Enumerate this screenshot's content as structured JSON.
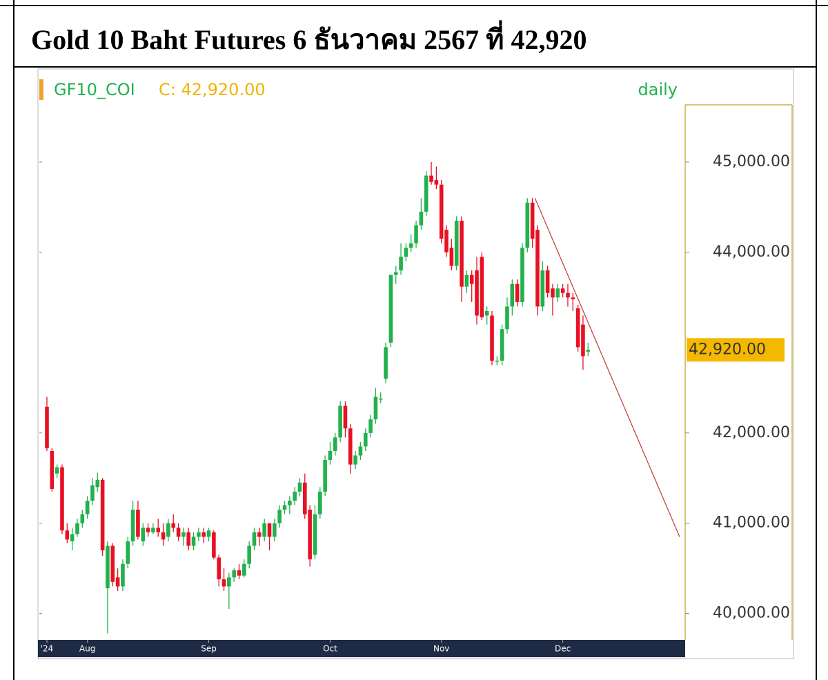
{
  "chart_data": {
    "type": "candlestick",
    "title": "Gold 10 Baht Futures 6 ธันวาคม 2567 ที่ 42,920",
    "symbol": "GF10_COI",
    "close_text": "C: 42,920.00",
    "interval": "daily",
    "up_color": "#22b14c",
    "down_color": "#e81123",
    "open": [
      42290,
      41800,
      41550,
      41620,
      40920,
      40800,
      40880,
      41000,
      41100,
      41250,
      41400,
      41480,
      40280,
      40750,
      40400,
      40300,
      40550,
      40800,
      41150,
      40800,
      40950,
      40900,
      40950,
      40900,
      40850,
      41000,
      40950,
      40850,
      40900,
      40750,
      40850,
      40900,
      40850,
      40900,
      40620,
      40380,
      40300,
      40400,
      40480,
      40420,
      40550,
      40750,
      40900,
      40850,
      41000,
      40850,
      41000,
      41150,
      41200,
      41250,
      41350,
      41450,
      41150,
      40650,
      41100,
      41350,
      41700,
      41800,
      41950,
      42300,
      42050,
      41650,
      41750,
      41850,
      42000,
      42150,
      42380,
      42600,
      43000,
      43750,
      43800,
      43950,
      44050,
      44100,
      44300,
      44450,
      44850,
      44800,
      44750,
      44250,
      44050,
      43850,
      44350,
      43620,
      43750,
      43800,
      43950,
      43300,
      43300,
      42800,
      42800,
      43150,
      43400,
      43650,
      43450,
      44050,
      44550,
      44250,
      43400,
      43800,
      43600,
      43500,
      43600,
      43550,
      43500,
      43380,
      43200,
      42900
    ],
    "high": [
      42400,
      41830,
      41650,
      41650,
      41000,
      40950,
      41050,
      41150,
      41300,
      41500,
      41560,
      41500,
      40800,
      40780,
      40500,
      40600,
      40850,
      41250,
      41250,
      41000,
      41000,
      41000,
      41050,
      41000,
      41050,
      41100,
      41000,
      40950,
      40950,
      40900,
      40950,
      40950,
      40950,
      40920,
      40650,
      40500,
      40450,
      40500,
      40550,
      40600,
      40800,
      40950,
      40950,
      41050,
      41000,
      41050,
      41200,
      41250,
      41300,
      41400,
      41500,
      41550,
      41200,
      41200,
      41400,
      41750,
      41900,
      42000,
      42350,
      42350,
      42100,
      41800,
      41900,
      42050,
      42200,
      42500,
      42450,
      43000,
      43750,
      43850,
      44100,
      44100,
      44200,
      44350,
      44600,
      44900,
      45000,
      44950,
      44800,
      44300,
      44150,
      44400,
      44400,
      43800,
      43800,
      43950,
      44000,
      43400,
      43350,
      42850,
      43200,
      43500,
      43700,
      43700,
      44100,
      44600,
      44600,
      44300,
      43900,
      43850,
      43650,
      43650,
      43650,
      43650,
      43550,
      43420,
      43300,
      43000
    ],
    "low": [
      41800,
      41350,
      41500,
      40880,
      40780,
      40700,
      40850,
      40950,
      41050,
      41200,
      41350,
      40640,
      39780,
      40300,
      40250,
      40250,
      40500,
      40750,
      40820,
      40750,
      40850,
      40880,
      40850,
      40750,
      40800,
      40900,
      40800,
      40750,
      40700,
      40700,
      40800,
      40780,
      40800,
      40600,
      40300,
      40250,
      40050,
      40350,
      40380,
      40400,
      40500,
      40700,
      40750,
      40800,
      40700,
      40800,
      40950,
      41100,
      41100,
      41200,
      41300,
      41050,
      40520,
      40600,
      41050,
      41300,
      41650,
      41750,
      41900,
      41950,
      41550,
      41600,
      41700,
      41800,
      41950,
      42100,
      42330,
      42550,
      42950,
      43650,
      43750,
      43900,
      44000,
      44050,
      44250,
      44400,
      44750,
      44700,
      44100,
      43950,
      43800,
      43800,
      43450,
      43550,
      43450,
      43200,
      43250,
      43200,
      42750,
      42750,
      42750,
      43100,
      43300,
      43400,
      43400,
      44000,
      44050,
      43300,
      43350,
      43500,
      43300,
      43450,
      43500,
      43400,
      43350,
      42900,
      42700,
      42850
    ],
    "close": [
      41830,
      41380,
      41620,
      40920,
      40820,
      40880,
      41000,
      41100,
      41250,
      41420,
      41480,
      40700,
      40750,
      40350,
      40300,
      40550,
      40800,
      41150,
      40850,
      40950,
      40900,
      40950,
      40900,
      40820,
      41000,
      40950,
      40850,
      40900,
      40750,
      40850,
      40900,
      40850,
      40920,
      40620,
      40380,
      40300,
      40400,
      40480,
      40420,
      40550,
      40750,
      40900,
      40850,
      41000,
      40850,
      41000,
      41150,
      41200,
      41250,
      41350,
      41450,
      41100,
      40600,
      41100,
      41350,
      41700,
      41800,
      41950,
      42300,
      42050,
      41650,
      41750,
      41850,
      42000,
      42150,
      42400,
      42380,
      42950,
      43750,
      43780,
      43950,
      44050,
      44100,
      44300,
      44450,
      44850,
      44780,
      44750,
      44150,
      44000,
      43850,
      44350,
      43620,
      43750,
      43650,
      43300,
      43280,
      43350,
      42800,
      42800,
      43150,
      43400,
      43650,
      43450,
      44050,
      44550,
      44150,
      43400,
      43800,
      43550,
      43500,
      43600,
      43550,
      43500,
      43480,
      42950,
      42850,
      42920
    ],
    "trendline": {
      "x": [
        96.5,
        125.1
      ],
      "values": [
        44600,
        40850
      ],
      "color": "#c0392b"
    },
    "last_price": {
      "value": 42920,
      "label": "42,920.00"
    },
    "ylim": [
      39730,
      46000
    ],
    "yticks": [
      {
        "value": 40000,
        "label": "40,000.00"
      },
      {
        "value": 41000,
        "label": "41,000.00"
      },
      {
        "value": 42000,
        "label": "42,000.00"
      },
      {
        "value": 44000,
        "label": "44,000.00"
      },
      {
        "value": 45000,
        "label": "45,000.00"
      }
    ],
    "xlim": [
      -1.5,
      126.2
    ],
    "xticks": [
      {
        "value": 0,
        "label": "'24"
      },
      {
        "value": 8,
        "label": "Aug"
      },
      {
        "value": 32,
        "label": "Sep"
      },
      {
        "value": 56,
        "label": "Oct"
      },
      {
        "value": 78,
        "label": "Nov"
      },
      {
        "value": 102,
        "label": "Dec"
      }
    ]
  }
}
